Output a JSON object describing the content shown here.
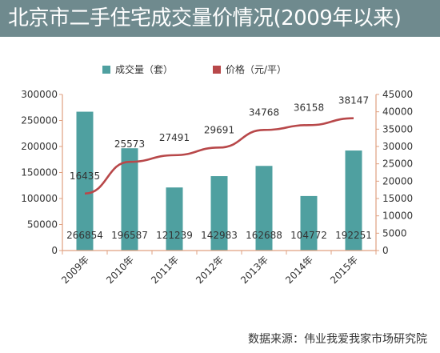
{
  "title": "北京市二手住宅成交量价情况(2009年以来)",
  "source": "数据来源：伟业我爱我家市场研究院",
  "colors": {
    "title_bg": "#6f8a8e",
    "bar": "#4fa0a0",
    "line": "#b8484a",
    "axis": "#e0a080",
    "text": "#333333"
  },
  "chart_data": {
    "type": "bar+line",
    "categories": [
      "2009年",
      "2010年",
      "2011年",
      "2012年",
      "2013年",
      "2014年",
      "2015年"
    ],
    "series": [
      {
        "name": "成交量（套）",
        "type": "bar",
        "axis": "left",
        "values": [
          266854,
          196587,
          121239,
          142983,
          162688,
          104772,
          192251
        ],
        "labels": [
          "266854",
          "196587",
          "121239",
          "142983",
          "162688",
          "104772",
          "192251"
        ]
      },
      {
        "name": "价格（元/平）",
        "type": "line",
        "axis": "right",
        "values": [
          16435,
          25573,
          27491,
          29691,
          34768,
          36158,
          38147
        ],
        "labels": [
          "16435",
          "25573",
          "27491",
          "29691",
          "34768",
          "36158",
          "38147"
        ]
      }
    ],
    "y_left": {
      "range": [
        0,
        300000
      ],
      "ticks": [
        "0",
        "50000",
        "100000",
        "150000",
        "200000",
        "250000",
        "300000"
      ]
    },
    "y_right": {
      "range": [
        0,
        45000
      ],
      "ticks": [
        "0",
        "5000",
        "10000",
        "15000",
        "20000",
        "25000",
        "30000",
        "35000",
        "40000",
        "45000"
      ]
    },
    "legend_position": "top-center",
    "grid": false
  }
}
